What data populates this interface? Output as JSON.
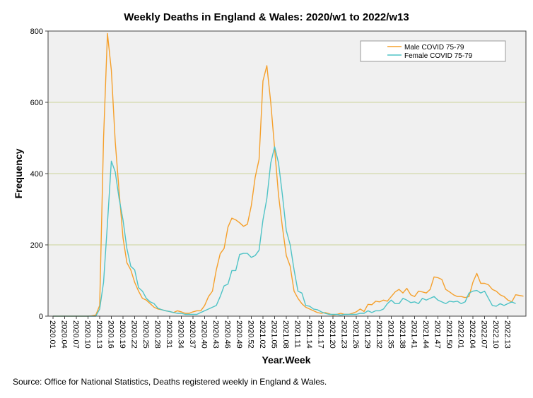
{
  "chart_data": {
    "type": "line",
    "title": "Weekly Deaths in England & Wales: 2020/w1 to 2022/w13",
    "xlabel": "Year.Week",
    "ylabel": "Frequency",
    "ylim": [
      0,
      800
    ],
    "yticks": [
      0,
      200,
      400,
      600,
      800
    ],
    "grid": "horizontal",
    "legend_position": "top-right",
    "xtick_labels": [
      "2020.01",
      "2020.04",
      "2020.07",
      "2020.10",
      "2020.13",
      "2020.16",
      "2020.19",
      "2020.22",
      "2020.25",
      "2020.28",
      "2020.31",
      "2020.34",
      "2020.37",
      "2020.40",
      "2020.43",
      "2020.46",
      "2020.49",
      "2020.52",
      "2021.02",
      "2021.05",
      "2021.08",
      "2021.11",
      "2021.14",
      "2021.17",
      "2021.20",
      "2021.23",
      "2021.26",
      "2021.29",
      "2021.32",
      "2021.35",
      "2021.38",
      "2021.41",
      "2021.44",
      "2021.47",
      "2021.50",
      "2022.01",
      "2022.04",
      "2022.07",
      "2022.10",
      "2022.13"
    ],
    "series": [
      {
        "name": "Male COVID 75-79",
        "color": "#f5a02c",
        "values": [
          0,
          0,
          0,
          0,
          0,
          0,
          0,
          0,
          0,
          0,
          1,
          3,
          30,
          500,
          793,
          690,
          490,
          350,
          220,
          150,
          130,
          95,
          70,
          50,
          45,
          35,
          25,
          20,
          18,
          15,
          13,
          10,
          15,
          12,
          8,
          8,
          12,
          15,
          15,
          30,
          55,
          70,
          130,
          175,
          190,
          250,
          275,
          270,
          262,
          252,
          258,
          310,
          390,
          440,
          660,
          703,
          600,
          470,
          340,
          250,
          170,
          140,
          70,
          50,
          35,
          25,
          20,
          15,
          10,
          8,
          10,
          7,
          3,
          5,
          8,
          5,
          5,
          8,
          12,
          20,
          13,
          33,
          32,
          42,
          40,
          45,
          42,
          55,
          68,
          75,
          65,
          78,
          60,
          55,
          70,
          68,
          65,
          75,
          110,
          108,
          103,
          75,
          68,
          60,
          55,
          55,
          52,
          55,
          95,
          120,
          92,
          92,
          88,
          75,
          70,
          60,
          55,
          45,
          40,
          60,
          58,
          56
        ]
      },
      {
        "name": "Female COVID 75-79",
        "color": "#4fc3c6",
        "values": [
          0,
          0,
          0,
          0,
          0,
          0,
          0,
          0,
          0,
          0,
          0,
          0,
          20,
          95,
          260,
          435,
          405,
          330,
          270,
          190,
          140,
          130,
          80,
          70,
          50,
          40,
          35,
          22,
          18,
          15,
          13,
          10,
          8,
          8,
          5,
          5,
          5,
          5,
          10,
          15,
          20,
          25,
          30,
          55,
          85,
          90,
          128,
          128,
          173,
          176,
          176,
          165,
          170,
          185,
          270,
          330,
          430,
          475,
          430,
          340,
          240,
          200,
          130,
          70,
          65,
          30,
          28,
          20,
          18,
          12,
          8,
          5,
          5,
          5,
          3,
          5,
          5,
          5,
          5,
          8,
          8,
          15,
          10,
          15,
          15,
          20,
          35,
          45,
          35,
          35,
          50,
          45,
          38,
          40,
          35,
          50,
          45,
          50,
          55,
          45,
          40,
          35,
          42,
          40,
          42,
          35,
          40,
          65,
          70,
          72,
          65,
          70,
          50,
          30,
          28,
          35,
          30,
          35,
          40,
          35
        ]
      }
    ]
  },
  "footer": {
    "source": "Source: Office for National Statistics, Deaths registered weekly in England & Wales."
  }
}
